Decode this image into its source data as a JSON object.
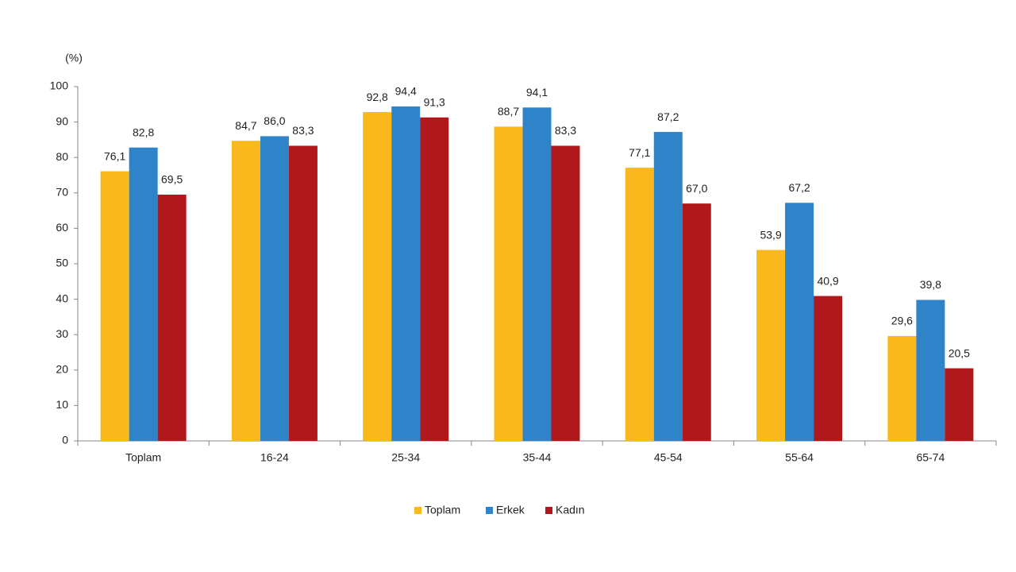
{
  "chart_data": {
    "type": "bar",
    "y_label": "(%)",
    "categories": [
      "Toplam",
      "16-24",
      "25-34",
      "35-44",
      "45-54",
      "55-64",
      "65-74"
    ],
    "series": [
      {
        "name": "Toplam",
        "color": "#f9b81c",
        "values": [
          76.1,
          84.7,
          92.8,
          88.7,
          77.1,
          53.9,
          29.6
        ],
        "value_labels": [
          "76,1",
          "84,7",
          "92,8",
          "88,7",
          "77,1",
          "53,9",
          "29,6"
        ]
      },
      {
        "name": "Erkek",
        "color": "#2e83c9",
        "values": [
          82.8,
          86.0,
          94.4,
          94.1,
          87.2,
          67.2,
          39.8
        ],
        "value_labels": [
          "82,8",
          "86,0",
          "94,4",
          "94,1",
          "87,2",
          "67,2",
          "39,8"
        ]
      },
      {
        "name": "Kadın",
        "color": "#b1181c",
        "values": [
          69.5,
          83.3,
          91.3,
          83.3,
          67.0,
          40.9,
          20.5
        ],
        "value_labels": [
          "69,5",
          "83,3",
          "91,3",
          "83,3",
          "67,0",
          "40,9",
          "20,5"
        ]
      }
    ],
    "ylim": [
      0,
      100
    ],
    "yticks": [
      0,
      10,
      20,
      30,
      40,
      50,
      60,
      70,
      80,
      90,
      100
    ],
    "grid": false,
    "legend": "bottom"
  }
}
